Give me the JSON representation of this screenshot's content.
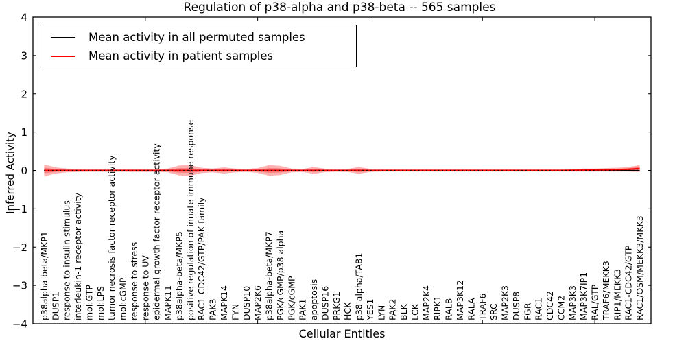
{
  "figure": {
    "title": "Regulation of p38-alpha and p38-beta -- 565 samples",
    "xlabel": "Cellular Entities",
    "ylabel": "Inferred Activity"
  },
  "legend": {
    "entries": [
      {
        "label": "Mean activity in all permuted samples",
        "color": "#000000"
      },
      {
        "label": "Mean activity in patient samples",
        "color": "#ff0000"
      }
    ]
  },
  "chart_data": {
    "type": "line",
    "title": "Regulation of p38-alpha and p38-beta -- 565 samples",
    "xlabel": "Cellular Entities",
    "ylabel": "Inferred Activity",
    "ylim": [
      -4,
      4
    ],
    "xlim": [
      0,
      55
    ],
    "yticks": [
      4,
      3,
      2,
      1,
      0,
      -1,
      -2,
      -3,
      -4
    ],
    "xticks": [
      10,
      20,
      30,
      40,
      50
    ],
    "grid": false,
    "legend_position": "upper left",
    "zero_line": {
      "style": "dotted",
      "color": "#000000",
      "y": 0
    },
    "band_color": "#ff0000",
    "band_alpha": 0.3,
    "categories": [
      "p38alpha-beta/MKP1",
      "DUSP1",
      "response to insulin stimulus",
      "interleukin-1 receptor activity",
      "mol:GTP",
      "mol:LPS",
      "tumor necrosis factor receptor activity",
      "mol:cGMP",
      "response to stress",
      "response to UV",
      "epidermal growth factor receptor activity",
      "MAPK11",
      "p38alpha-beta/MKP5",
      "positive regulation of innate immune response",
      "RAC1-CDC42/GTP/PAK family",
      "PAK3",
      "MAPK14",
      "FYN",
      "DUSP10",
      "MAP2K6",
      "p38alpha-beta/MKP7",
      "PGK/cGMP/p38 alpha",
      "PGK/cGMP",
      "PAK1",
      "apoptosis",
      "DUSP16",
      "PRKG1",
      "HCK",
      "p38 alpha/TAB1",
      "YES1",
      "LYN",
      "PAK2",
      "BLK",
      "LCK",
      "MAP2K4",
      "RIPK1",
      "RALB",
      "MAP3K12",
      "RALA",
      "TRAF6",
      "SRC",
      "MAP2K3",
      "DUSP8",
      "FGR",
      "RAC1",
      "CDC42",
      "CCM2",
      "MAP3K3",
      "MAP3K7IP1",
      "RAL/GTP",
      "TRAF6/MEKK3",
      "RIP1/MEKK3",
      "RAC1-CDC42/GTP",
      "RAC1/OSM/MEKK3/MKK3"
    ],
    "series": [
      {
        "name": "Mean activity in all permuted samples",
        "color": "#000000",
        "style": "solid",
        "values": [
          0,
          0,
          0,
          0,
          0,
          0,
          0,
          0,
          0,
          0,
          0,
          0,
          0,
          0,
          0,
          0,
          0,
          0,
          0,
          0,
          0,
          0,
          0,
          0,
          0,
          0,
          0,
          0,
          0,
          0,
          0,
          0,
          0,
          0,
          0,
          0,
          0,
          0,
          0,
          0,
          0,
          0,
          0,
          0,
          0,
          0,
          0,
          0,
          0,
          0,
          0,
          0,
          0,
          0
        ]
      },
      {
        "name": "Mean activity in patient samples",
        "color": "#ff0000",
        "style": "solid",
        "values": [
          0,
          0,
          0,
          0,
          0,
          0,
          0,
          0,
          0,
          0,
          0,
          0,
          0,
          0,
          0,
          0,
          0,
          0,
          0,
          0,
          0,
          0,
          0,
          0,
          0,
          0,
          0,
          0,
          0,
          0,
          0,
          0,
          0,
          0,
          0,
          0,
          0,
          0,
          0,
          0,
          0,
          0,
          0,
          0,
          0,
          0,
          0,
          0.005,
          0.008,
          0.01,
          0.015,
          0.02,
          0.03,
          0.05
        ]
      },
      {
        "name": "patient sample activity spread (half-width around mean)",
        "color": "#ff0000",
        "style": "band",
        "values": [
          0.16,
          0.08,
          0.05,
          0.04,
          0.035,
          0.035,
          0.035,
          0.035,
          0.04,
          0.04,
          0.04,
          0.05,
          0.13,
          0.14,
          0.07,
          0.05,
          0.08,
          0.05,
          0.04,
          0.06,
          0.14,
          0.12,
          0.05,
          0.04,
          0.09,
          0.045,
          0.035,
          0.04,
          0.09,
          0.04,
          0.03,
          0.03,
          0.03,
          0.03,
          0.03,
          0.03,
          0.03,
          0.03,
          0.03,
          0.03,
          0.03,
          0.03,
          0.03,
          0.03,
          0.03,
          0.03,
          0.03,
          0.035,
          0.04,
          0.04,
          0.045,
          0.05,
          0.06,
          0.09
        ]
      }
    ]
  }
}
